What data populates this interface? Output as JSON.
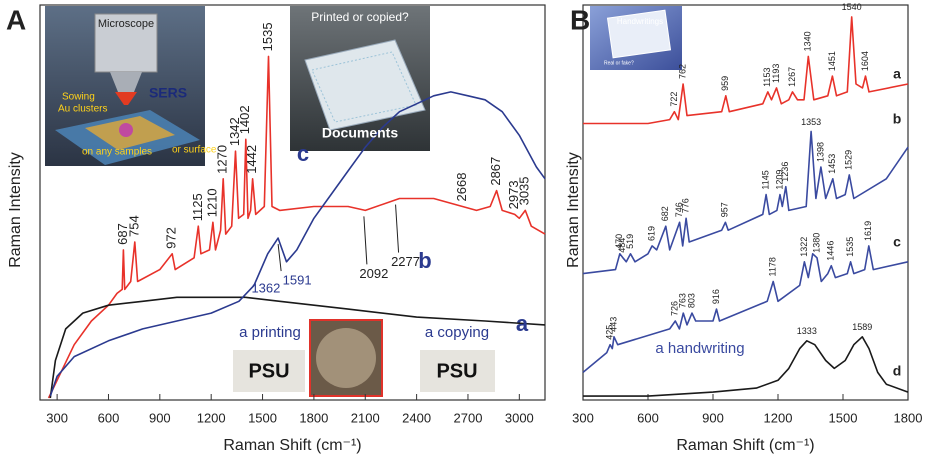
{
  "chart_data": [
    {
      "type": "line",
      "panel_label": "A",
      "x_label": "Raman Shift (cm⁻¹)",
      "y_label": "Raman Intensity",
      "xlim": [
        200,
        3150
      ],
      "xticks": [
        300,
        600,
        900,
        1200,
        1500,
        1800,
        2100,
        2400,
        2700,
        3000
      ],
      "ylim": [
        0,
        100
      ],
      "series": [
        {
          "name": "b",
          "color": "#e8322a",
          "x": [
            250,
            300,
            400,
            500,
            600,
            650,
            680,
            687,
            695,
            730,
            754,
            770,
            900,
            972,
            990,
            1100,
            1125,
            1140,
            1190,
            1210,
            1225,
            1255,
            1270,
            1285,
            1320,
            1342,
            1360,
            1390,
            1402,
            1415,
            1430,
            1442,
            1460,
            1510,
            1535,
            1555,
            1600,
            1800,
            2000,
            2100,
            2300,
            2500,
            2668,
            2750,
            2830,
            2867,
            2900,
            2973,
            3000,
            3035,
            3070,
            3150
          ],
          "values": [
            0.5,
            5,
            14,
            20,
            24,
            27,
            28,
            38,
            28,
            30,
            40,
            30,
            33,
            37,
            33,
            36,
            44,
            37,
            38,
            45,
            38,
            43,
            56,
            42,
            44,
            63,
            46,
            47,
            66,
            46,
            48,
            56,
            47,
            49,
            87,
            49,
            48,
            49,
            49,
            48,
            51,
            51,
            49,
            48,
            49,
            53,
            48,
            47,
            46,
            48,
            44,
            42
          ],
          "peaks": [
            687,
            754,
            972,
            1125,
            1210,
            1270,
            1342,
            1402,
            1442,
            1535,
            2668,
            2867,
            2973,
            3035
          ],
          "peak_notes": [
            2092,
            2277
          ]
        },
        {
          "name": "a",
          "color": "#1a1a1a",
          "x": [
            260,
            290,
            350,
            450,
            600,
            800,
            1000,
            1200,
            1400,
            1600,
            1800,
            2000,
            2400,
            2800,
            3150
          ],
          "values": [
            0.5,
            10,
            18,
            22,
            24,
            25,
            26,
            26,
            26,
            25,
            24,
            23,
            21,
            20,
            19
          ]
        },
        {
          "name": "c",
          "color": "#2b3a8f",
          "x": [
            260,
            300,
            400,
            600,
            800,
            1000,
            1200,
            1362,
            1450,
            1530,
            1591,
            1640,
            1700,
            1800,
            1900,
            2000,
            2100,
            2200,
            2300,
            2400,
            2500,
            2600,
            2700,
            2800,
            2900,
            3000,
            3100,
            3150
          ],
          "values": [
            1,
            6,
            11,
            15,
            18,
            20,
            22,
            25,
            29,
            37,
            41,
            35,
            38,
            46,
            52,
            58,
            64,
            69,
            73,
            75,
            77,
            78,
            77,
            76,
            73,
            67,
            59,
            56
          ],
          "peak_notes": [
            1362,
            1591
          ]
        }
      ],
      "insets": {
        "microscope": "Microscope",
        "sers": "SERS",
        "sowing": "Sowing",
        "clusters": "Au clusters",
        "samples": "on any samples",
        "surface": "or surface",
        "question": "Printed or copied?",
        "documents": "Documents",
        "printing": "a printing",
        "copying": "a copying",
        "psu_left": "PSU",
        "psu_right": "PSU"
      }
    },
    {
      "type": "line",
      "panel_label": "B",
      "x_label": "Raman Shift (cm⁻¹)",
      "y_label": "Raman Intensity",
      "xlim": [
        300,
        1800
      ],
      "xticks": [
        300,
        600,
        900,
        1200,
        1500,
        1800
      ],
      "ylim": [
        0,
        100
      ],
      "series": [
        {
          "name": "a",
          "color": "#e8322a",
          "x": [
            300,
            600,
            700,
            722,
            740,
            762,
            780,
            940,
            959,
            975,
            1130,
            1153,
            1170,
            1193,
            1215,
            1250,
            1267,
            1290,
            1320,
            1340,
            1365,
            1430,
            1451,
            1470,
            1520,
            1540,
            1560,
            1590,
            1604,
            1620,
            1800
          ],
          "values": [
            70,
            70,
            71,
            73,
            71,
            80,
            72,
            73,
            77,
            73,
            75,
            78,
            76,
            79,
            75,
            76,
            78,
            76,
            76,
            87,
            76,
            77,
            82,
            77,
            78,
            97,
            80,
            79,
            82,
            78,
            80
          ],
          "peaks": [
            722,
            762,
            959,
            1153,
            1193,
            1267,
            1340,
            1451,
            1604
          ],
          "peak_notes": [
            1540
          ]
        },
        {
          "name": "b",
          "color": "#3a4aa0",
          "x": [
            300,
            450,
            470,
            484,
            500,
            519,
            540,
            600,
            619,
            640,
            682,
            700,
            746,
            760,
            776,
            790,
            940,
            957,
            970,
            1130,
            1145,
            1160,
            1195,
            1209,
            1220,
            1236,
            1250,
            1330,
            1353,
            1375,
            1398,
            1420,
            1453,
            1470,
            1510,
            1529,
            1550,
            1700,
            1800
          ],
          "values": [
            32,
            33,
            37,
            36,
            35,
            37,
            35,
            37,
            39,
            38,
            44,
            38,
            45,
            39,
            46,
            40,
            43,
            45,
            43,
            47,
            52,
            47,
            48,
            52,
            49,
            54,
            48,
            49,
            68,
            51,
            59,
            51,
            56,
            51,
            52,
            57,
            51,
            56,
            64
          ],
          "peaks": [
            470,
            484,
            519,
            619,
            682,
            746,
            776,
            957,
            1145,
            1209,
            1236,
            1398,
            1453,
            1529
          ],
          "peak_notes": [
            1353
          ]
        },
        {
          "name": "c",
          "color": "#3a4aa0",
          "x": [
            300,
            410,
            425,
            435,
            443,
            460,
            700,
            726,
            745,
            763,
            780,
            803,
            820,
            900,
            916,
            930,
            1150,
            1178,
            1200,
            1300,
            1322,
            1340,
            1360,
            1380,
            1400,
            1430,
            1446,
            1465,
            1520,
            1535,
            1550,
            1600,
            1619,
            1640,
            1800
          ],
          "values": [
            7,
            12,
            14,
            13,
            16,
            14,
            18,
            20,
            18,
            22,
            19,
            22,
            20,
            20,
            23,
            20,
            25,
            30,
            25,
            29,
            35,
            31,
            37,
            36,
            30,
            32,
            34,
            31,
            32,
            35,
            32,
            33,
            39,
            33,
            35
          ],
          "peaks": [
            425,
            443,
            726,
            763,
            803,
            916,
            1178,
            1322,
            1380,
            1446,
            1535,
            1619
          ]
        },
        {
          "name": "d",
          "color": "#1a1a1a",
          "x": [
            300,
            600,
            900,
            1100,
            1200,
            1250,
            1300,
            1333,
            1370,
            1420,
            1460,
            1510,
            1550,
            1589,
            1620,
            1660,
            1700,
            1800
          ],
          "values": [
            1,
            1,
            2,
            3,
            5,
            8,
            13,
            15,
            14,
            10,
            8,
            10,
            14,
            16,
            13,
            7,
            4,
            2
          ],
          "peak_notes": [
            1333,
            1589
          ]
        }
      ],
      "insets": {
        "handwritings": "Handwritings",
        "real": "Real or fake?",
        "handwriting": "a handwriting"
      }
    }
  ]
}
